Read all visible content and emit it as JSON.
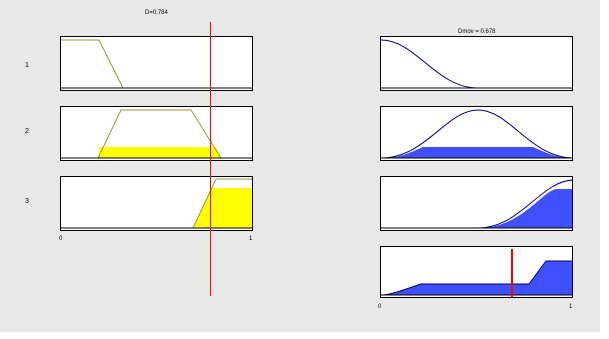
{
  "window": {
    "background": "#e8e8e8"
  },
  "input_title": "D=0.784",
  "output_title": "Dmov = 0.678",
  "rule_labels": [
    "1",
    "2",
    "3"
  ],
  "input_axis": {
    "min_label": "0",
    "max_label": "1"
  },
  "output_axis": {
    "min_label": "0",
    "max_label": "1"
  },
  "input_value": 0.784,
  "output_value": 0.678,
  "colors": {
    "input_fill": "#ffff00",
    "input_line": "#9a9a3a",
    "output_fill": "#4050ff",
    "output_line": "#000080",
    "cursor": "#ff0000",
    "result_cursor": "#ff0000"
  },
  "icons": {
    "input_cursor": "red-vertical-line",
    "output_result_marker": "red-bar-marker"
  }
}
